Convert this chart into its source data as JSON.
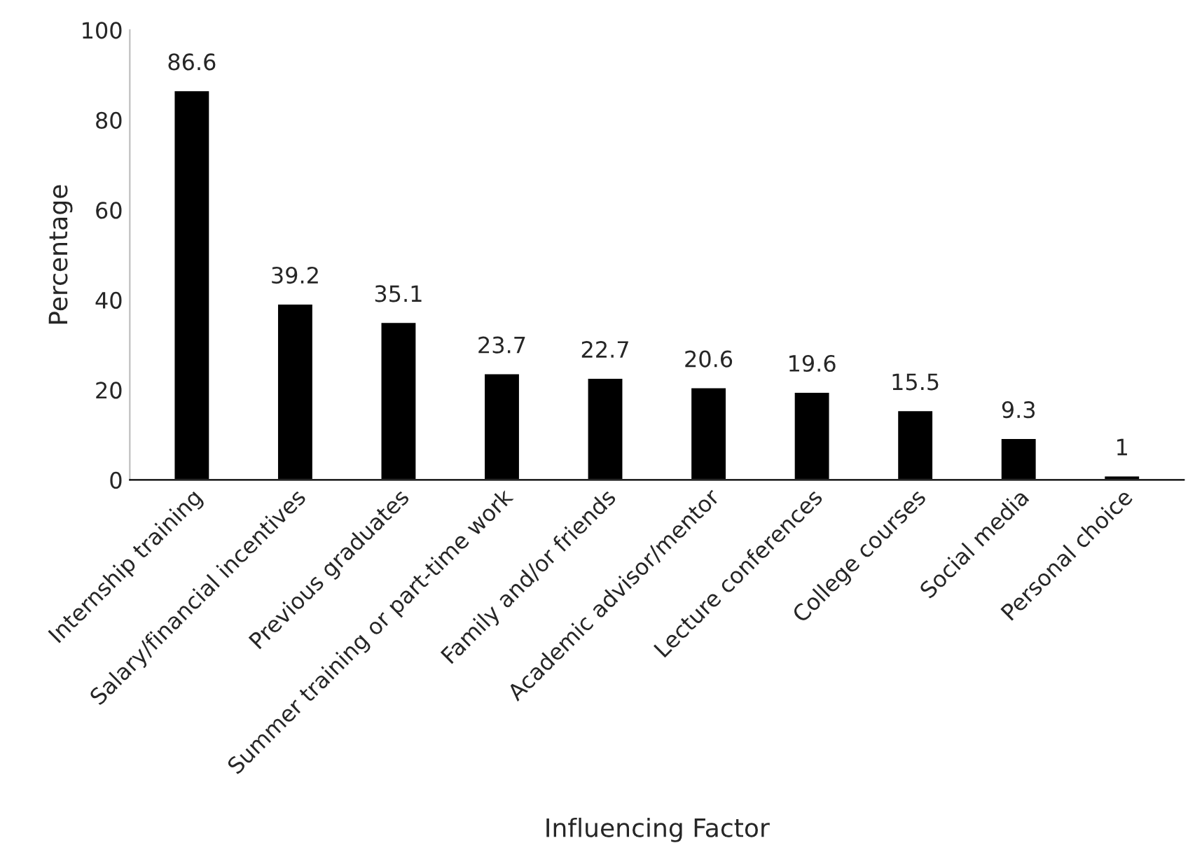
{
  "chart_data": {
    "type": "bar",
    "xlabel": "Influencing Factor",
    "ylabel": "Percentage",
    "categories": [
      "Internship training",
      "Salary/financial incentives",
      "Previous graduates",
      "Summer training or part-time work",
      "Family and/or friends",
      "Academic advisor/mentor",
      "Lecture conferences",
      "College courses",
      "Social media",
      "Personal choice"
    ],
    "values": [
      86.6,
      39.2,
      35.1,
      23.7,
      22.7,
      20.6,
      19.6,
      15.5,
      9.3,
      1
    ],
    "color": "#000000",
    "ylim": [
      0,
      100
    ],
    "yticks": [
      0,
      20,
      40,
      60,
      80,
      100
    ],
    "grid": false,
    "data_labels": true
  }
}
